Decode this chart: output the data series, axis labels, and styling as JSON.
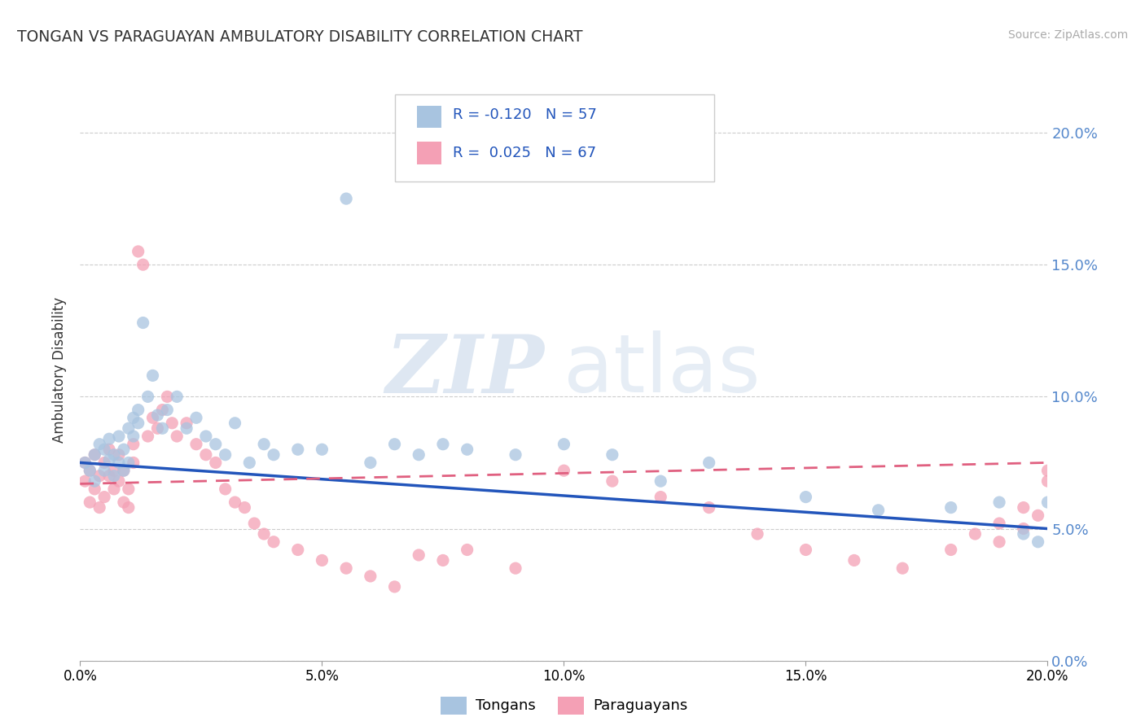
{
  "title": "TONGAN VS PARAGUAYAN AMBULATORY DISABILITY CORRELATION CHART",
  "source": "Source: ZipAtlas.com",
  "ylabel": "Ambulatory Disability",
  "x_min": 0.0,
  "x_max": 0.2,
  "y_min": 0.0,
  "y_max": 0.22,
  "tongan_color": "#a8c4e0",
  "paraguayan_color": "#f4a0b5",
  "tongan_line_color": "#2255bb",
  "paraguayan_line_color": "#e06080",
  "right_axis_color": "#5588cc",
  "tongan_R": -0.12,
  "tongan_N": 57,
  "paraguayan_R": 0.025,
  "paraguayan_N": 67,
  "background_color": "#ffffff",
  "grid_color": "#cccccc",
  "watermark_zip": "ZIP",
  "watermark_atlas": "atlas",
  "tongan_scatter_x": [
    0.001,
    0.002,
    0.003,
    0.003,
    0.004,
    0.005,
    0.005,
    0.006,
    0.006,
    0.007,
    0.007,
    0.008,
    0.008,
    0.009,
    0.009,
    0.01,
    0.01,
    0.011,
    0.011,
    0.012,
    0.012,
    0.013,
    0.014,
    0.015,
    0.016,
    0.017,
    0.018,
    0.02,
    0.022,
    0.024,
    0.026,
    0.028,
    0.03,
    0.032,
    0.035,
    0.038,
    0.04,
    0.045,
    0.05,
    0.055,
    0.06,
    0.065,
    0.07,
    0.075,
    0.08,
    0.09,
    0.1,
    0.11,
    0.12,
    0.13,
    0.15,
    0.165,
    0.18,
    0.19,
    0.195,
    0.198,
    0.2
  ],
  "tongan_scatter_y": [
    0.075,
    0.072,
    0.078,
    0.068,
    0.082,
    0.072,
    0.08,
    0.076,
    0.084,
    0.07,
    0.078,
    0.075,
    0.085,
    0.072,
    0.08,
    0.075,
    0.088,
    0.092,
    0.085,
    0.09,
    0.095,
    0.128,
    0.1,
    0.108,
    0.093,
    0.088,
    0.095,
    0.1,
    0.088,
    0.092,
    0.085,
    0.082,
    0.078,
    0.09,
    0.075,
    0.082,
    0.078,
    0.08,
    0.08,
    0.175,
    0.075,
    0.082,
    0.078,
    0.082,
    0.08,
    0.078,
    0.082,
    0.078,
    0.068,
    0.075,
    0.062,
    0.057,
    0.058,
    0.06,
    0.048,
    0.045,
    0.06
  ],
  "paraguayan_scatter_x": [
    0.001,
    0.001,
    0.002,
    0.002,
    0.003,
    0.003,
    0.004,
    0.004,
    0.005,
    0.005,
    0.006,
    0.006,
    0.007,
    0.007,
    0.008,
    0.008,
    0.009,
    0.009,
    0.01,
    0.01,
    0.011,
    0.011,
    0.012,
    0.013,
    0.014,
    0.015,
    0.016,
    0.017,
    0.018,
    0.019,
    0.02,
    0.022,
    0.024,
    0.026,
    0.028,
    0.03,
    0.032,
    0.034,
    0.036,
    0.038,
    0.04,
    0.045,
    0.05,
    0.055,
    0.06,
    0.065,
    0.07,
    0.075,
    0.08,
    0.09,
    0.1,
    0.11,
    0.12,
    0.13,
    0.14,
    0.15,
    0.16,
    0.17,
    0.18,
    0.19,
    0.195,
    0.198,
    0.2,
    0.2,
    0.195,
    0.19,
    0.185
  ],
  "paraguayan_scatter_y": [
    0.068,
    0.075,
    0.072,
    0.06,
    0.078,
    0.065,
    0.07,
    0.058,
    0.075,
    0.062,
    0.08,
    0.07,
    0.065,
    0.072,
    0.068,
    0.078,
    0.06,
    0.072,
    0.058,
    0.065,
    0.075,
    0.082,
    0.155,
    0.15,
    0.085,
    0.092,
    0.088,
    0.095,
    0.1,
    0.09,
    0.085,
    0.09,
    0.082,
    0.078,
    0.075,
    0.065,
    0.06,
    0.058,
    0.052,
    0.048,
    0.045,
    0.042,
    0.038,
    0.035,
    0.032,
    0.028,
    0.04,
    0.038,
    0.042,
    0.035,
    0.072,
    0.068,
    0.062,
    0.058,
    0.048,
    0.042,
    0.038,
    0.035,
    0.042,
    0.045,
    0.05,
    0.055,
    0.072,
    0.068,
    0.058,
    0.052,
    0.048
  ]
}
